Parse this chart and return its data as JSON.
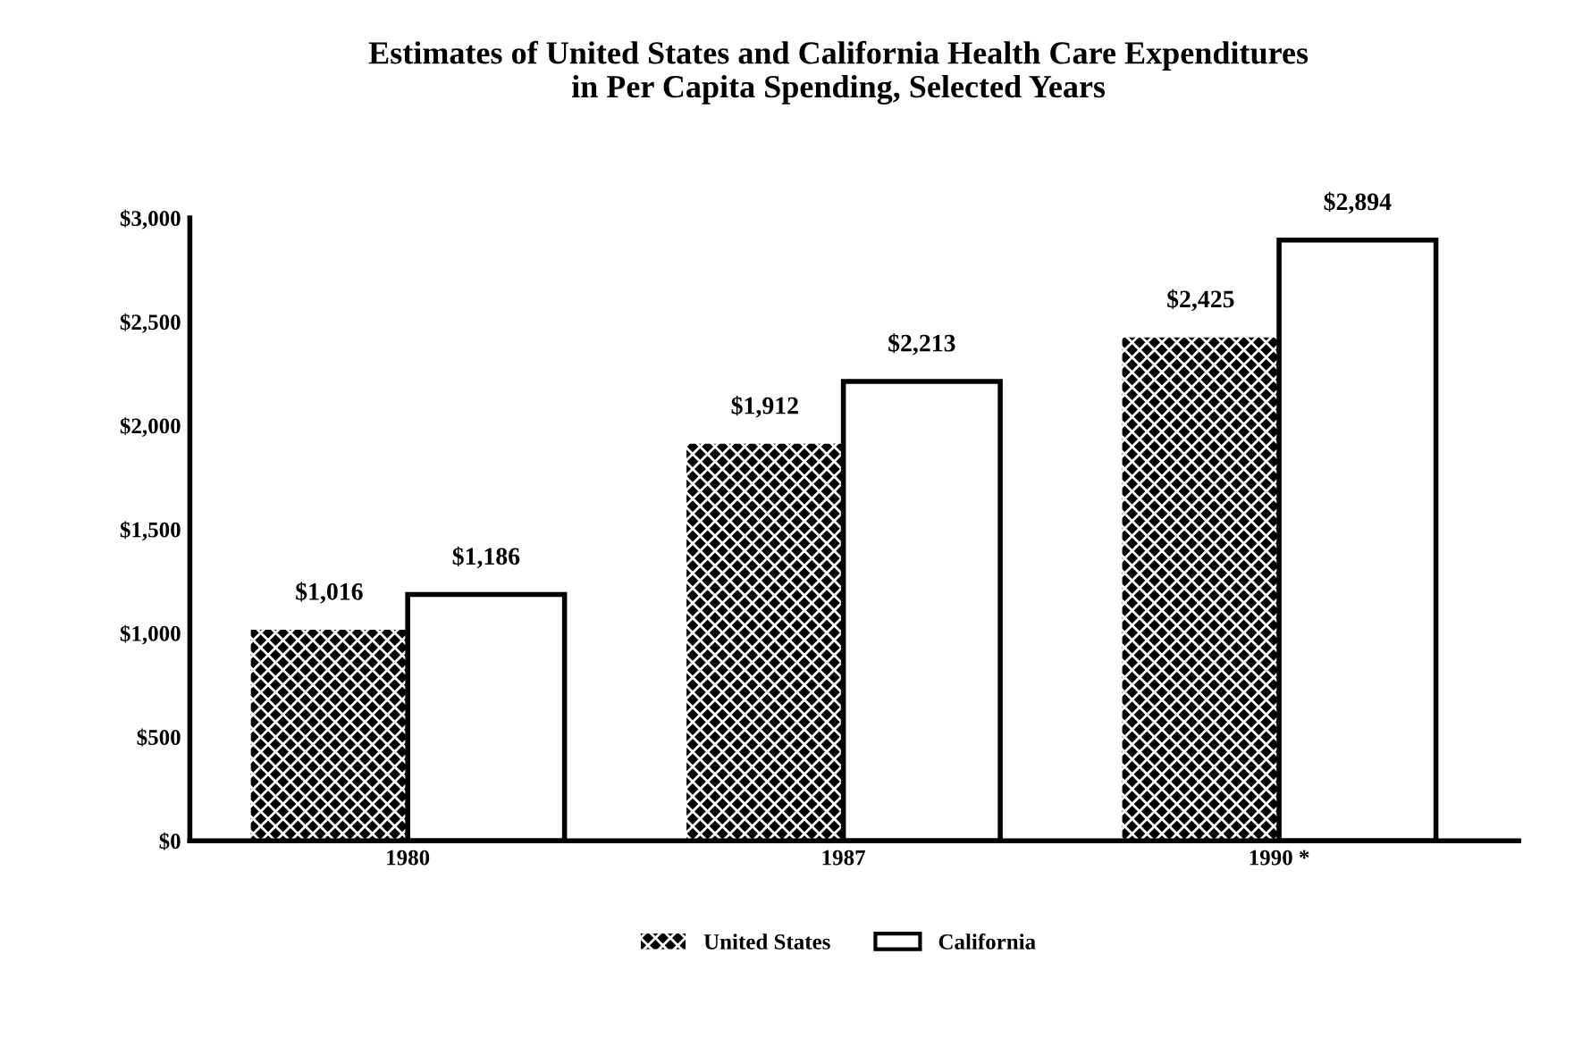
{
  "chart_data": {
    "type": "bar",
    "title": "Estimates of United States and California Health Care Expenditures\nin Per Capita Spending, Selected Years",
    "categories": [
      "1980",
      "1987",
      "1990 *"
    ],
    "series": [
      {
        "name": "United States",
        "color": "#000000",
        "values": [
          1016,
          1912,
          2425
        ],
        "value_labels": [
          "$1,016",
          "$1,912",
          "$2,425"
        ]
      },
      {
        "name": "California",
        "color": "#ffffff",
        "values": [
          1186,
          2213,
          2894
        ],
        "value_labels": [
          "$1,186",
          "$2,213",
          "$2,894"
        ]
      }
    ],
    "ylim": [
      0,
      3000
    ],
    "yticks": [
      {
        "value": 0,
        "label": "$0"
      },
      {
        "value": 500,
        "label": "$500"
      },
      {
        "value": 1000,
        "label": "$1,000"
      },
      {
        "value": 1500,
        "label": "$1,500"
      },
      {
        "value": 2000,
        "label": "$2,000"
      },
      {
        "value": 2500,
        "label": "$2,500"
      },
      {
        "value": 3000,
        "label": "$3,000"
      }
    ],
    "grid": false,
    "legend": "bottom"
  }
}
